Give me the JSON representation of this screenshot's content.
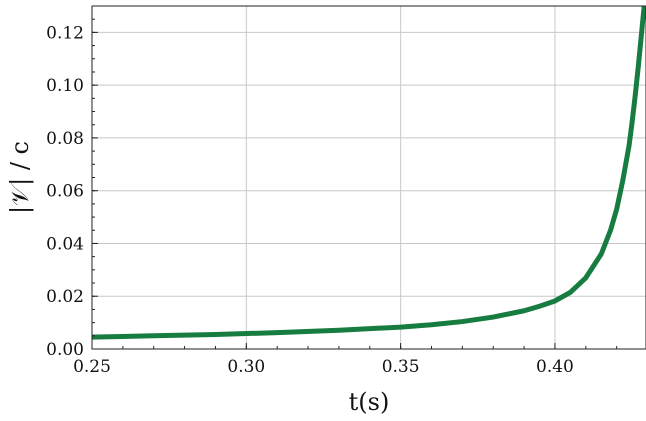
{
  "chart_data": {
    "type": "line",
    "title": "",
    "xlabel": "t(s)",
    "ylabel": "|𝒱| / c",
    "xlim": [
      0.25,
      0.4295
    ],
    "ylim": [
      0.0,
      0.13
    ],
    "xticks": [
      0.25,
      0.3,
      0.35,
      0.4
    ],
    "xtick_labels": [
      "0.25",
      "0.30",
      "0.35",
      "0.40"
    ],
    "yticks": [
      0.0,
      0.02,
      0.04,
      0.06,
      0.08,
      0.1,
      0.12
    ],
    "ytick_labels": [
      "0.00",
      "0.02",
      "0.04",
      "0.06",
      "0.08",
      "0.10",
      "0.12"
    ],
    "grid": true,
    "legend": "none",
    "series": [
      {
        "color": "#177c3f",
        "x": [
          0.25,
          0.27,
          0.29,
          0.31,
          0.33,
          0.35,
          0.36,
          0.37,
          0.38,
          0.39,
          0.395,
          0.4,
          0.405,
          0.41,
          0.415,
          0.418,
          0.42,
          0.422,
          0.424,
          0.425,
          0.426,
          0.427,
          0.428,
          0.4285,
          0.429
        ],
        "y": [
          0.0045,
          0.005,
          0.0055,
          0.0062,
          0.0071,
          0.0083,
          0.0092,
          0.0104,
          0.0121,
          0.0145,
          0.0162,
          0.0182,
          0.0215,
          0.027,
          0.036,
          0.045,
          0.053,
          0.064,
          0.077,
          0.086,
          0.096,
          0.107,
          0.119,
          0.125,
          0.131
        ]
      }
    ]
  }
}
